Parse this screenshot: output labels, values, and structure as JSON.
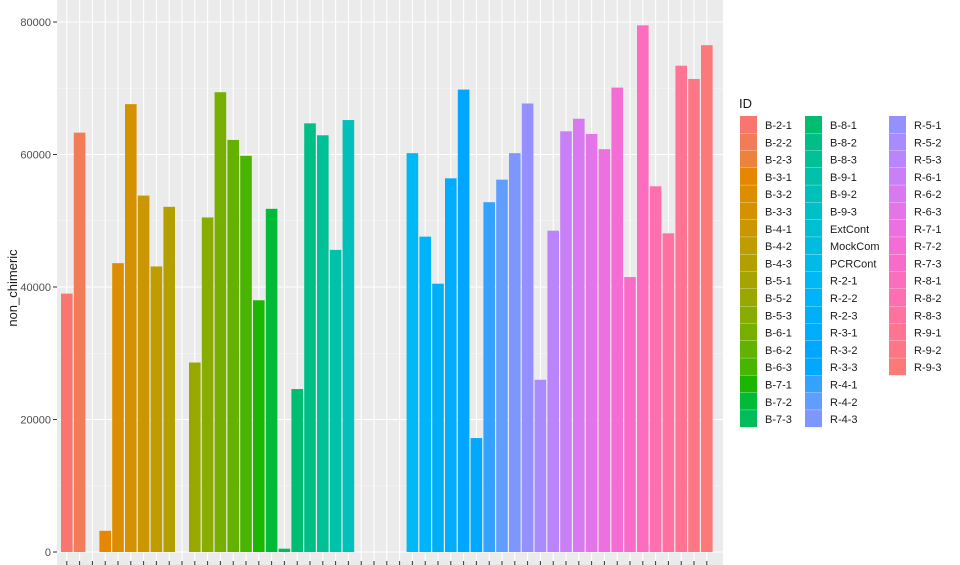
{
  "chart_data": {
    "type": "bar",
    "xlabel": "",
    "ylabel": "non_chimeric",
    "ylim": [
      0,
      81500
    ],
    "yticks": [
      0,
      20000,
      40000,
      60000,
      80000
    ],
    "ytick_labels": [
      "0",
      "20000",
      "40000",
      "60000",
      "80000"
    ],
    "grid": true,
    "legend_title": "ID",
    "legend_position": "right",
    "categories": [
      "B-2-1",
      "B-2-2",
      "B-2-3",
      "B-3-1",
      "B-3-2",
      "B-3-3",
      "B-4-1",
      "B-4-2",
      "B-4-3",
      "B-5-1",
      "B-5-2",
      "B-5-3",
      "B-6-1",
      "B-6-2",
      "B-6-3",
      "B-7-1",
      "B-7-2",
      "B-7-3",
      "B-8-1",
      "B-8-2",
      "B-8-3",
      "B-9-1",
      "B-9-2",
      "B-9-3",
      "ExtCont",
      "MockCom",
      "PCRCont",
      "R-2-1",
      "R-2-2",
      "R-2-3",
      "R-3-1",
      "R-3-2",
      "R-3-3",
      "R-4-1",
      "R-4-2",
      "R-4-3",
      "R-5-1",
      "R-5-2",
      "R-5-3",
      "R-6-1",
      "R-6-2",
      "R-6-3",
      "R-7-1",
      "R-7-2",
      "R-7-3",
      "R-8-1",
      "R-8-2",
      "R-8-3",
      "R-9-1",
      "R-9-2",
      "R-9-3"
    ],
    "values": [
      39000,
      63300,
      0,
      3200,
      43600,
      67600,
      53800,
      43100,
      52100,
      0,
      28600,
      50500,
      69400,
      62200,
      59800,
      38000,
      51800,
      500,
      24600,
      64700,
      62900,
      45600,
      65200,
      0,
      0,
      0,
      0,
      60200,
      47600,
      40500,
      56400,
      69800,
      17200,
      52800,
      56200,
      60200,
      67700,
      26000,
      48500,
      63500,
      65400,
      63100,
      60800,
      70100,
      41500,
      79500,
      55200,
      48100,
      73400,
      71400,
      76500
    ],
    "colors": [
      "#F8766D",
      "#F27C57",
      "#EC823B",
      "#E58700",
      "#DD8D00",
      "#D49200",
      "#CA9700",
      "#BF9C00",
      "#B3A000",
      "#A6A400",
      "#98A800",
      "#88AC00",
      "#77AF00",
      "#63B200",
      "#49B500",
      "#1BB700",
      "#00BA38",
      "#00BC59",
      "#00BD71",
      "#00BF86",
      "#00C098",
      "#00C1A9",
      "#00C1B9",
      "#00C0C7",
      "#00BFD4",
      "#00BDE0",
      "#00BBEA",
      "#00B8F3",
      "#00B4FB",
      "#00B0F6",
      "#00ACFC",
      "#00A6FF",
      "#00A8FF",
      "#35A2FF",
      "#619CFF",
      "#7E96FF",
      "#9590FF",
      "#A98BFE",
      "#BA85FB",
      "#C97FF6",
      "#D779F0",
      "#E375E9",
      "#EC70DF",
      "#F46DD5",
      "#F96BC9",
      "#FC6DBD",
      "#FE6FAF",
      "#FF71A1",
      "#FF7493",
      "#FD7784",
      "#FC7979"
    ]
  }
}
